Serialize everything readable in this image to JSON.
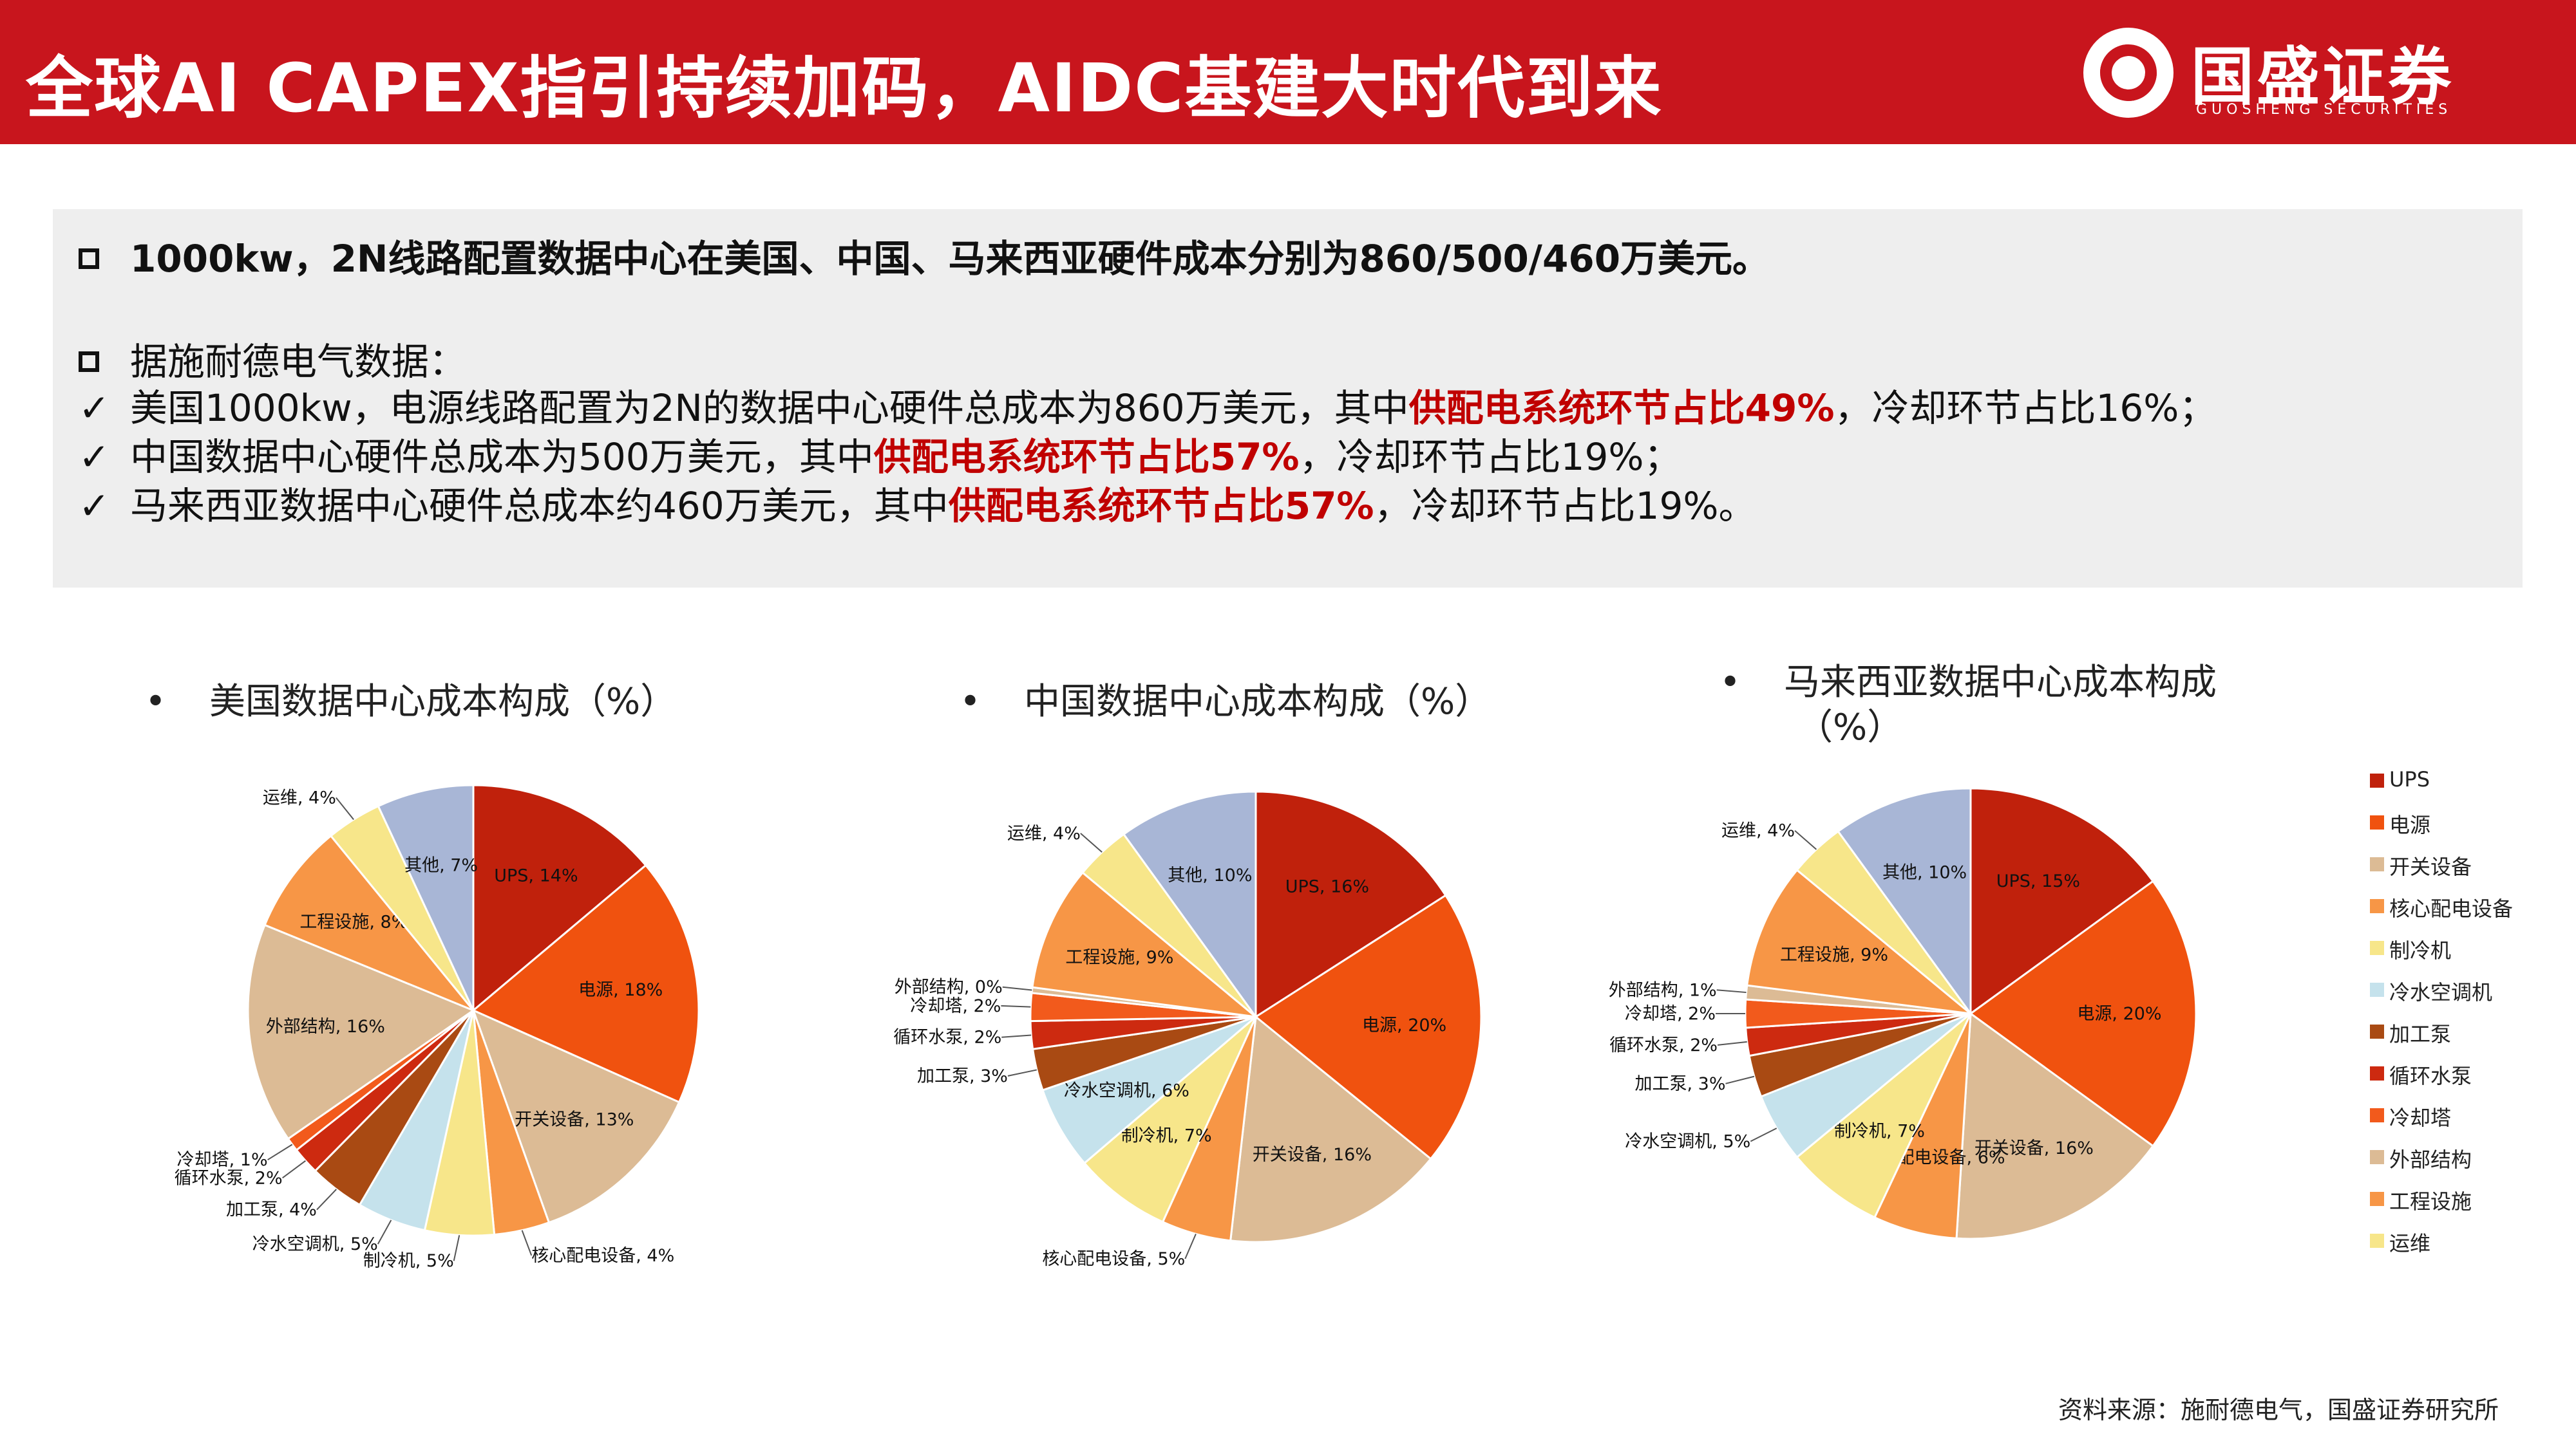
{
  "header": {
    "title": "全球AI CAPEX指引持续加码，AIDC基建大时代到来"
  },
  "logo": {
    "name": "国盛证券",
    "english": "GUOSHENG SECURITIES"
  },
  "summary": {
    "line1_prefix": "1000kw，2N线路配置数据中心在美国、中国、马来西亚硬件成本分别为860/500/460万美元。",
    "line2": "据施耐德电气数据：",
    "us": {
      "pre": "美国1000kw，电源线路配置为2N的数据中心硬件总成本为860万美元，其中",
      "hl": "供配电系统环节占比49%",
      "post": "，冷却环节占比16%；"
    },
    "cn": {
      "pre": "中国数据中心硬件总成本为500万美元，其中",
      "hl": "供配电系统环节占比57%",
      "post": "，冷却环节占比19%；"
    },
    "my": {
      "pre": "马来西亚数据中心硬件总成本约460万美元，其中",
      "hl": "供配电系统环节占比57%",
      "post": "，冷却环节占比19%。"
    },
    "check": "✓"
  },
  "chart_titles": {
    "us": "美国数据中心成本构成（%）",
    "cn": "中国数据中心成本构成（%）",
    "my_line1": "马来西亚数据中心成本构成",
    "my_line2": "（%）",
    "bullet": "•"
  },
  "legend": [
    {
      "name": "UPS",
      "color": "#c0210c"
    },
    {
      "name": "电源",
      "color": "#f0520f"
    },
    {
      "name": "开关设备",
      "color": "#dcbb95"
    },
    {
      "name": "核心配电设备",
      "color": "#f79646"
    },
    {
      "name": "制冷机",
      "color": "#f7e68a"
    },
    {
      "name": "冷水空调机",
      "color": "#c5e2ec"
    },
    {
      "name": "加工泵",
      "color": "#a94a13"
    },
    {
      "name": "循环水泵",
      "color": "#cd2a10"
    },
    {
      "name": "冷却塔",
      "color": "#f25a1c"
    },
    {
      "name": "外部结构",
      "color": "#dcbb95"
    },
    {
      "name": "工程设施",
      "color": "#f79646"
    },
    {
      "name": "运维",
      "color": "#f7e68a"
    },
    {
      "name": "其他",
      "color": "#a8b6d6"
    }
  ],
  "chart_data": [
    {
      "type": "pie",
      "title": "美国数据中心成本构成（%）",
      "slices": [
        {
          "name": "UPS",
          "value": 14,
          "label": "UPS, 14%"
        },
        {
          "name": "电源",
          "value": 18,
          "label": "电源, 18%"
        },
        {
          "name": "开关设备",
          "value": 13,
          "label": "开关设备, 13%"
        },
        {
          "name": "核心配电设备",
          "value": 4,
          "label": "核心配电设备, 4%"
        },
        {
          "name": "制冷机",
          "value": 5,
          "label": "制冷机, 5%"
        },
        {
          "name": "冷水空调机",
          "value": 5,
          "label": "冷水空调机, 5%"
        },
        {
          "name": "加工泵",
          "value": 4,
          "label": "加工泵, 4%"
        },
        {
          "name": "循环水泵",
          "value": 2,
          "label": "循环水泵, 2%"
        },
        {
          "name": "冷却塔",
          "value": 1,
          "label": "冷却塔, 1%"
        },
        {
          "name": "外部结构",
          "value": 16,
          "label": "外部结构, 16%"
        },
        {
          "name": "工程设施",
          "value": 8,
          "label": "工程设施, 8%"
        },
        {
          "name": "运维",
          "value": 4,
          "label": "运维, 4%"
        },
        {
          "name": "其他",
          "value": 7,
          "label": "其他, 7%"
        }
      ]
    },
    {
      "type": "pie",
      "title": "中国数据中心成本构成（%）",
      "slices": [
        {
          "name": "UPS",
          "value": 16,
          "label": "UPS, 16%"
        },
        {
          "name": "电源",
          "value": 20,
          "label": "电源, 20%"
        },
        {
          "name": "开关设备",
          "value": 16,
          "label": "开关设备, 16%"
        },
        {
          "name": "核心配电设备",
          "value": 5,
          "label": "核心配电设备, 5%"
        },
        {
          "name": "制冷机",
          "value": 7,
          "label": "制冷机, 7%"
        },
        {
          "name": "冷水空调机",
          "value": 6,
          "label": "冷水空调机, 6%"
        },
        {
          "name": "加工泵",
          "value": 3,
          "label": "加工泵, 3%"
        },
        {
          "name": "循环水泵",
          "value": 2,
          "label": "循环水泵, 2%"
        },
        {
          "name": "冷却塔",
          "value": 2,
          "label": "冷却塔, 2%"
        },
        {
          "name": "外部结构",
          "value": 0.4,
          "label": "外部结构, 0%"
        },
        {
          "name": "工程设施",
          "value": 9,
          "label": "工程设施, 9%"
        },
        {
          "name": "运维",
          "value": 4,
          "label": "运维, 4%"
        },
        {
          "name": "其他",
          "value": 10,
          "label": "其他, 10%"
        }
      ]
    },
    {
      "type": "pie",
      "title": "马来西亚数据中心成本构成（%）",
      "slices": [
        {
          "name": "UPS",
          "value": 15,
          "label": "UPS, 15%"
        },
        {
          "name": "电源",
          "value": 20,
          "label": "电源, 20%"
        },
        {
          "name": "开关设备",
          "value": 16,
          "label": "开关设备, 16%"
        },
        {
          "name": "核心配电设备",
          "value": 6,
          "label": "核心配电设备, 6%"
        },
        {
          "name": "制冷机",
          "value": 7,
          "label": "制冷机, 7%"
        },
        {
          "name": "冷水空调机",
          "value": 5,
          "label": "冷水空调机, 5%"
        },
        {
          "name": "加工泵",
          "value": 3,
          "label": "加工泵, 3%"
        },
        {
          "name": "循环水泵",
          "value": 2,
          "label": "循环水泵, 2%"
        },
        {
          "name": "冷却塔",
          "value": 2,
          "label": "冷却塔, 2%"
        },
        {
          "name": "外部结构",
          "value": 1,
          "label": "外部结构, 1%"
        },
        {
          "name": "工程设施",
          "value": 9,
          "label": "工程设施, 9%"
        },
        {
          "name": "运维",
          "value": 4,
          "label": "运维, 4%"
        },
        {
          "name": "其他",
          "value": 10,
          "label": "其他, 10%"
        }
      ]
    }
  ],
  "source": "资料来源：施耐德电气，国盛证券研究所"
}
